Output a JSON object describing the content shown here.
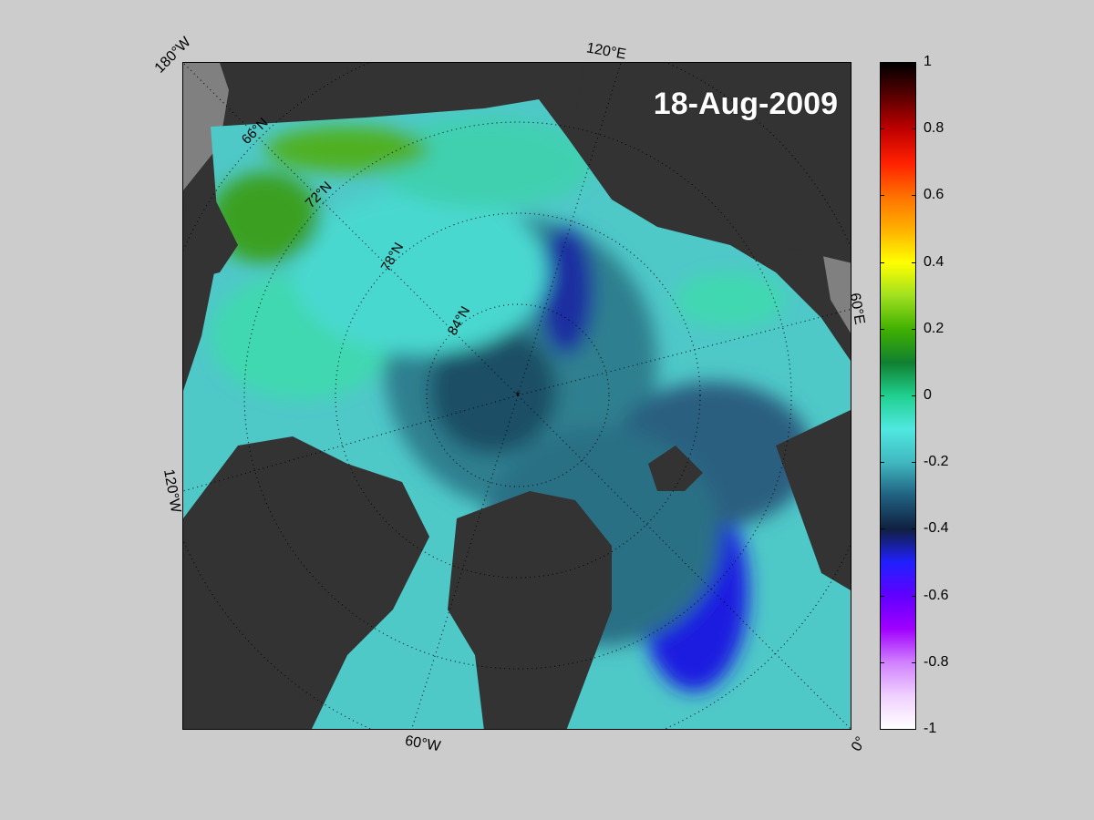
{
  "map": {
    "date": "18-Aug-2009",
    "edge_labels": {
      "top_left": "180°W",
      "top": "120°E",
      "right": "60°E",
      "bottom_right": "0°",
      "bottom": "60°W",
      "left": "120°W"
    },
    "latitude_labels": [
      "66°N",
      "72°N",
      "78°N",
      "84°N"
    ]
  },
  "colorbar": {
    "ticks": [
      "1",
      "0.8",
      "0.6",
      "0.4",
      "0.2",
      "0",
      "-0.2",
      "-0.4",
      "-0.6",
      "-0.8",
      "-1"
    ],
    "range": [
      -1,
      1
    ]
  },
  "colors": {
    "land": "#333333",
    "no_data": "#808080",
    "background": "#cccccc"
  }
}
